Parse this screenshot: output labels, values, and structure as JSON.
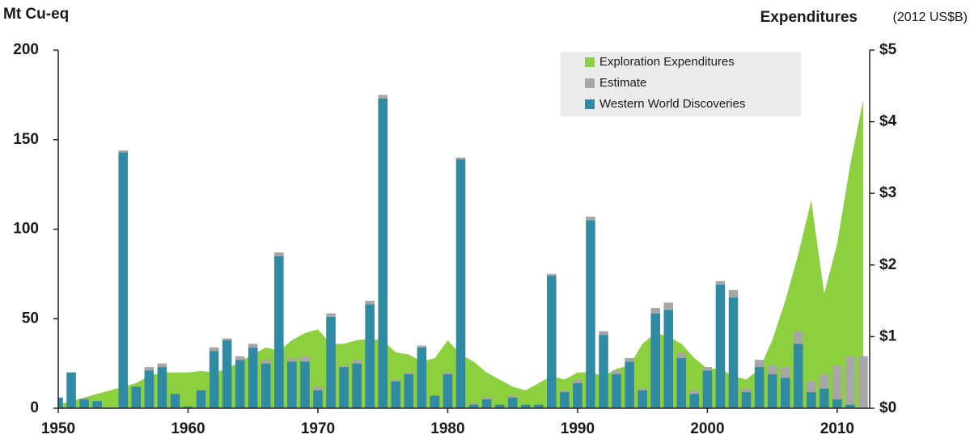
{
  "chart_data": {
    "type": "bar",
    "left_axis_label": "Mt Cu-eq",
    "right_axis_label": "Expenditures",
    "right_axis_unit": "(2012 US$B)",
    "x": [
      1950,
      1951,
      1952,
      1953,
      1954,
      1955,
      1956,
      1957,
      1958,
      1959,
      1960,
      1961,
      1962,
      1963,
      1964,
      1965,
      1966,
      1967,
      1968,
      1969,
      1970,
      1971,
      1972,
      1973,
      1974,
      1975,
      1976,
      1977,
      1978,
      1979,
      1980,
      1981,
      1982,
      1983,
      1984,
      1985,
      1986,
      1987,
      1988,
      1989,
      1990,
      1991,
      1992,
      1993,
      1994,
      1995,
      1996,
      1997,
      1998,
      1999,
      2000,
      2001,
      2002,
      2003,
      2004,
      2005,
      2006,
      2007,
      2008,
      2009,
      2010,
      2011,
      2012
    ],
    "series": [
      {
        "name": "Exploration Expenditures",
        "color": "#8dd03f",
        "type": "area",
        "axis": "y2",
        "values": [
          0.05,
          0.1,
          0.15,
          0.2,
          0.25,
          0.3,
          0.35,
          0.45,
          0.5,
          0.5,
          0.5,
          0.52,
          0.5,
          0.55,
          0.65,
          0.75,
          0.85,
          0.8,
          0.95,
          1.05,
          1.1,
          0.9,
          0.9,
          0.95,
          0.97,
          0.95,
          0.78,
          0.75,
          0.65,
          0.7,
          0.95,
          0.75,
          0.65,
          0.5,
          0.4,
          0.3,
          0.25,
          0.35,
          0.45,
          0.4,
          0.5,
          0.5,
          0.45,
          0.55,
          0.6,
          0.9,
          1.05,
          1.0,
          0.9,
          0.7,
          0.55,
          0.55,
          0.45,
          0.4,
          0.55,
          0.95,
          1.5,
          2.15,
          2.9,
          1.6,
          2.3,
          3.4,
          4.3
        ]
      },
      {
        "name": "Estimate",
        "color": "#a6a6a6",
        "type": "bar",
        "stack_on": 2,
        "values": [
          0,
          0,
          0.5,
          0,
          0,
          1,
          0,
          2,
          2,
          0,
          0,
          0,
          2,
          1,
          2,
          2,
          2,
          2,
          2,
          3,
          2,
          2,
          1,
          2,
          2,
          2,
          1,
          1,
          1,
          0,
          1,
          1,
          1,
          1,
          0,
          1,
          0,
          0,
          1,
          1,
          2,
          2,
          2,
          2,
          2,
          1,
          3,
          4,
          3,
          2,
          2,
          2,
          4,
          2,
          4,
          5,
          6,
          7,
          6,
          8,
          19,
          27,
          29
        ]
      },
      {
        "name": "Western World Discoveries",
        "color": "#2f8aa3",
        "type": "bar",
        "values": [
          6,
          20,
          5,
          4,
          0,
          143,
          12,
          21,
          23,
          8,
          1,
          10,
          32,
          38,
          27,
          34,
          25,
          85,
          26,
          26,
          10,
          51,
          23,
          25,
          58,
          173,
          15,
          19,
          34,
          7,
          19,
          139,
          2,
          5,
          2,
          6,
          2,
          2,
          74,
          9,
          14,
          105,
          41,
          19,
          26,
          10,
          53,
          55,
          28,
          8,
          21,
          69,
          62,
          9,
          23,
          19,
          17,
          36,
          9,
          11,
          5,
          2,
          0
        ]
      }
    ],
    "xlim": [
      1950,
      2012.5
    ],
    "xticks": [
      1950,
      1960,
      1970,
      1980,
      1990,
      2000,
      2010
    ],
    "ylim": [
      0,
      200
    ],
    "yticks": [
      0,
      50,
      100,
      150,
      200
    ],
    "y2lim": [
      0,
      5
    ],
    "y2ticks": [
      {
        "value": 0,
        "label": "$0"
      },
      {
        "value": 1,
        "label": "$1"
      },
      {
        "value": 2,
        "label": "$2"
      },
      {
        "value": 3,
        "label": "$3"
      },
      {
        "value": 4,
        "label": "$4"
      },
      {
        "value": 5,
        "label": "$5"
      }
    ],
    "legend": "top-right"
  }
}
